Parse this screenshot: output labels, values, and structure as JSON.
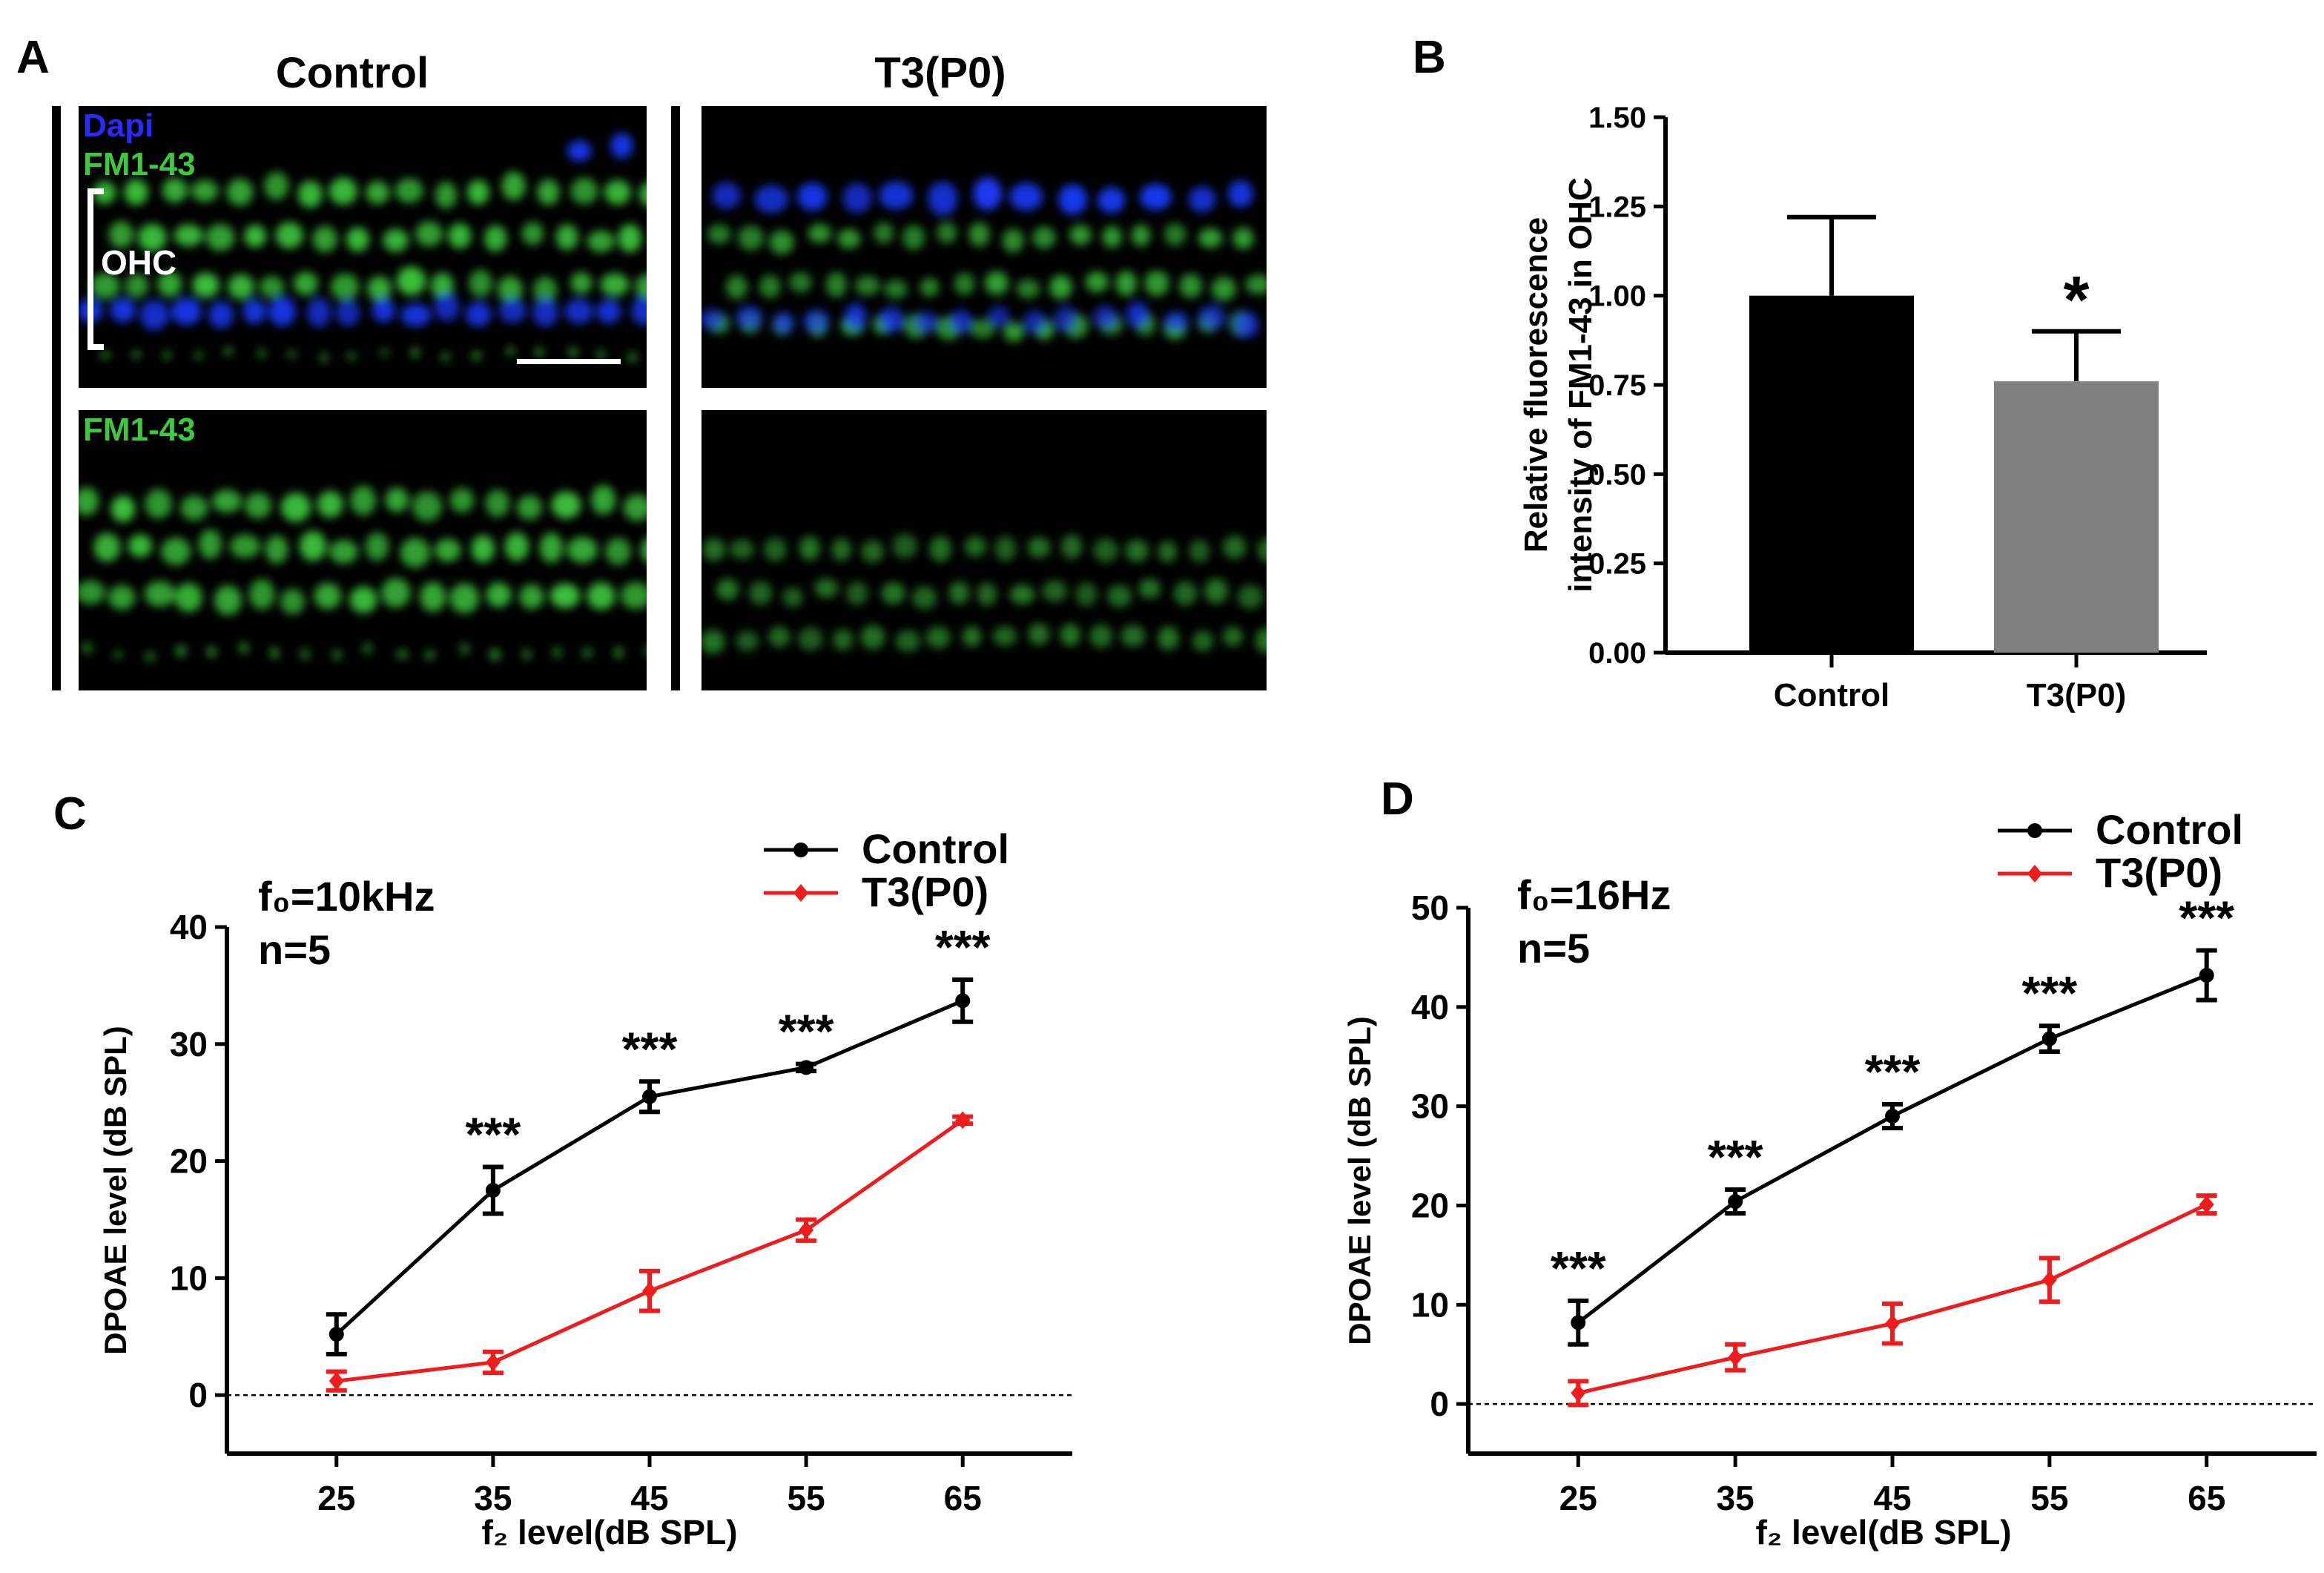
{
  "panel_a": {
    "letter": "A",
    "col_titles": [
      "Control",
      "T3(P0)"
    ],
    "channel_labels": {
      "dapi": "Dapi",
      "fm1": "FM1-43",
      "fm2": "FM1-43"
    },
    "ohc_label": "OHC",
    "colors": {
      "dapi": "#1a3cff",
      "fm": "#3ec83e",
      "background": "#000000"
    }
  },
  "chart_data": [
    {
      "panel": "B",
      "type": "bar",
      "ylabel_lines": [
        "Relative fluorescence",
        "intensity of FM1-43 in OHC"
      ],
      "categories": [
        "Control",
        "T3(P0)"
      ],
      "values": [
        1.0,
        0.76
      ],
      "errors": [
        0.22,
        0.14
      ],
      "bar_colors": [
        "#000000",
        "#808080"
      ],
      "significance": [
        "",
        "*"
      ],
      "ylim": [
        0,
        1.5
      ],
      "yticks": [
        "0.00",
        "0.25",
        "0.50",
        "0.75",
        "1.00",
        "1.25",
        "1.50"
      ]
    },
    {
      "panel": "C",
      "type": "line",
      "annotations": [
        "f₀=10kHz",
        "n=5"
      ],
      "xlabel": "f₂ level(dB SPL)",
      "ylabel": "DPOAE level (dB SPL)",
      "x": [
        25,
        35,
        45,
        55,
        65
      ],
      "xlim": [
        18,
        72
      ],
      "ylim": [
        -5,
        40
      ],
      "yticks": [
        0,
        10,
        20,
        30,
        40
      ],
      "series": [
        {
          "name": "Control",
          "color": "#000000",
          "values": [
            5.2,
            17.5,
            25.5,
            28.0,
            33.7
          ],
          "errors": [
            1.7,
            2.0,
            1.3,
            0.3,
            1.8
          ]
        },
        {
          "name": "T3(P0)",
          "color": "#ee1c1c",
          "values": [
            1.2,
            2.8,
            8.9,
            14.1,
            23.5
          ],
          "errors": [
            0.8,
            0.9,
            1.7,
            0.9,
            0.3
          ]
        }
      ],
      "significance": [
        "",
        "***",
        "***",
        "***",
        "***"
      ],
      "legend_position": "top-right",
      "zero_line": true
    },
    {
      "panel": "D",
      "type": "line",
      "annotations": [
        "f₀=16Hz",
        "n=5"
      ],
      "xlabel": "f₂ level(dB SPL)",
      "ylabel": "DPOAE level (dB SPL)",
      "x": [
        25,
        35,
        45,
        55,
        65
      ],
      "xlim": [
        18,
        72
      ],
      "ylim": [
        -5,
        50
      ],
      "yticks": [
        0,
        10,
        20,
        30,
        40,
        50
      ],
      "series": [
        {
          "name": "Control",
          "color": "#000000",
          "values": [
            8.2,
            20.4,
            29.0,
            36.8,
            43.2
          ],
          "errors": [
            2.2,
            1.2,
            1.2,
            1.3,
            2.5
          ]
        },
        {
          "name": "T3(P0)",
          "color": "#ee1c1c",
          "values": [
            1.1,
            4.7,
            8.1,
            12.5,
            20.1
          ],
          "errors": [
            1.2,
            1.3,
            2.0,
            2.2,
            0.9
          ]
        }
      ],
      "significance": [
        "***",
        "***",
        "***",
        "***",
        "***"
      ],
      "legend_position": "top-right",
      "zero_line": true
    }
  ]
}
